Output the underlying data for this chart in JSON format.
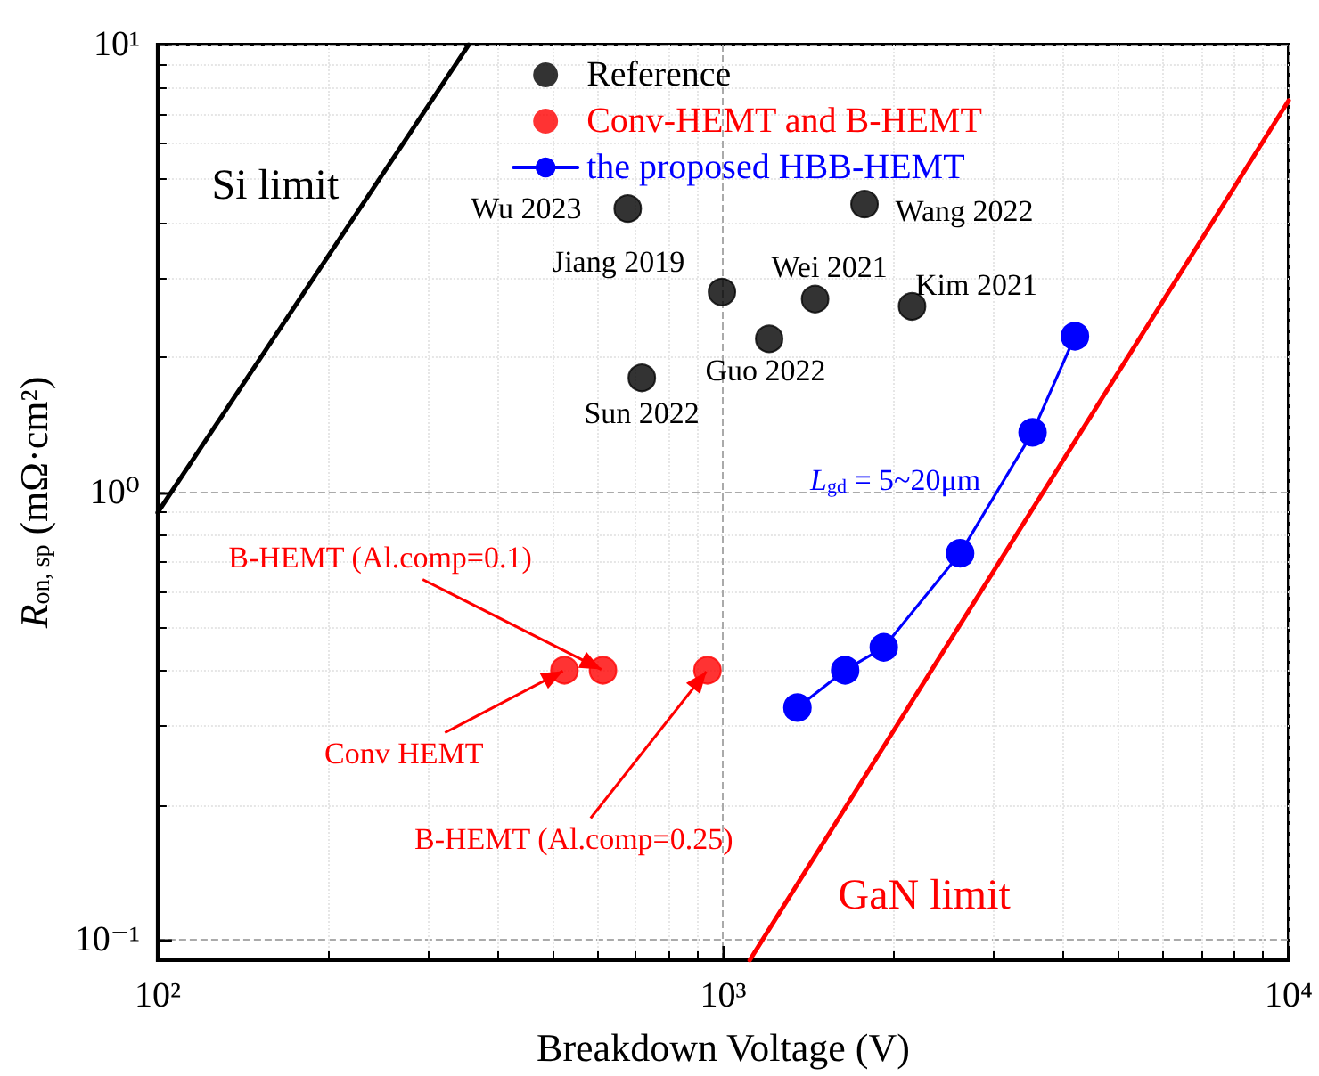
{
  "chart_data": {
    "type": "scatter",
    "xlabel": "Breakdown Voltage (V)",
    "ylabel": "R$_{on, sp}$ (mΩ·cm²)",
    "log": "xy",
    "grid": true,
    "legend": "top",
    "marker": "circle",
    "xlim": [
      100,
      10000
    ],
    "xticks": [
      {
        "value": 100,
        "label": "10²"
      },
      {
        "value": 1000,
        "label": "10³"
      },
      {
        "value": 10000,
        "label": "10⁴"
      }
    ],
    "ylim": [
      0.09,
      10
    ],
    "yticks": [
      {
        "value": 0.1,
        "label": "10⁻¹"
      },
      {
        "value": 1,
        "label": "10⁰"
      },
      {
        "value": 10,
        "label": "10¹"
      }
    ],
    "series": [
      {
        "name": "Reference",
        "color": "#000000",
        "x": [
          678,
          995,
          718,
          1206,
          1454,
          1778,
          2158
        ],
        "values": [
          4.3,
          2.8,
          1.8,
          2.2,
          2.7,
          4.4,
          2.6
        ],
        "value_labels": [
          "Wu 2023",
          "Jiang 2019",
          "Sun 2022",
          "Guo 2022",
          "Wei 2021",
          "Wang 2022",
          "Kim 2021"
        ]
      },
      {
        "name": "Conv-HEMT and B-HEMT",
        "color": "#ff0000",
        "x": [
          524,
          613,
          938
        ],
        "values": [
          0.4,
          0.4,
          0.4
        ]
      },
      {
        "name": "the proposed HBB-HEMT",
        "type": "line",
        "color": "#0000ff",
        "line_style": "solid",
        "x": [
          1353,
          1643,
          1923,
          2624,
          3524,
          4188
        ],
        "values": [
          0.33,
          0.4,
          0.45,
          0.73,
          1.36,
          2.23
        ]
      },
      {
        "name": "Si limit",
        "type": "line",
        "marker": "none",
        "color": "#000000",
        "line_style": "solid",
        "x": [
          100,
          355
        ],
        "values": [
          0.9,
          10
        ]
      },
      {
        "name": "GaN limit",
        "type": "line",
        "marker": "none",
        "color": "#ff0000",
        "line_style": "solid",
        "x": [
          1114,
          10000
        ],
        "values": [
          0.09,
          7.5
        ]
      }
    ],
    "annotations": [
      {
        "text": "Conv HEMT",
        "x": 524,
        "y": 0.4
      },
      {
        "text": "B-HEMT (Al.comp=0.1)",
        "x": 613,
        "y": 0.4
      },
      {
        "text": "B-HEMT (Al.comp=0.25)",
        "x": 938,
        "y": 0.4
      },
      {
        "text": "L$_{gd}$ = 5~20μm",
        "x": 3524,
        "y": 1.36
      }
    ]
  }
}
